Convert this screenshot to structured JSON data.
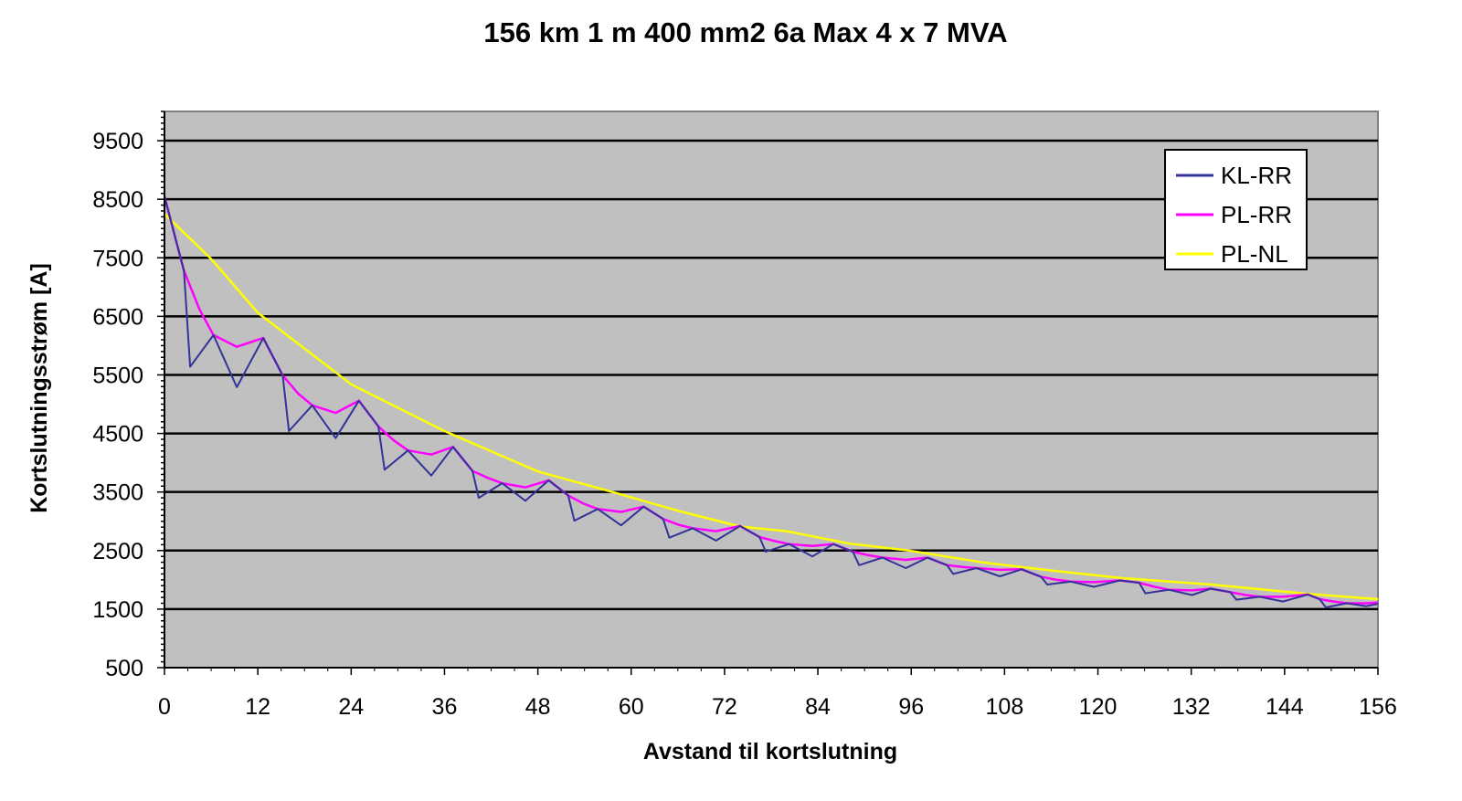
{
  "chart_data": {
    "type": "line",
    "title": "156 km 1 m 400 mm2 6a Max 4 x 7 MVA",
    "xlabel": "Avstand til kortslutning",
    "ylabel": "Kortslutningsstrøm [A]",
    "xlim": [
      0,
      156
    ],
    "ylim": [
      500,
      10000
    ],
    "xticks": [
      "0",
      "12",
      "24",
      "36",
      "48",
      "60",
      "72",
      "84",
      "96",
      "108",
      "120",
      "132",
      "144",
      "156"
    ],
    "yticks": [
      "500",
      "1500",
      "2500",
      "3500",
      "4500",
      "5500",
      "6500",
      "7500",
      "8500",
      "9500"
    ],
    "grid": "horizontal major",
    "background": "#c0c0c0",
    "legend_position": "top-right",
    "series": [
      {
        "name": "KL-RR",
        "color": "#333399",
        "x": [
          0,
          2.5,
          3.3,
          6.3,
          9.3,
          12.7,
          15.2,
          16,
          19,
          22,
          25,
          27.5,
          28.3,
          31.3,
          34.3,
          37.1,
          39.6,
          40.4,
          43.4,
          46.4,
          49.4,
          51.9,
          52.7,
          55.7,
          58.7,
          61.6,
          64.1,
          64.9,
          67.9,
          70.9,
          74,
          76.5,
          77.3,
          80.3,
          83.3,
          86,
          88.5,
          89.3,
          92.3,
          95.3,
          98.1,
          100.6,
          101.4,
          104.4,
          107.4,
          110.2,
          112.7,
          113.5,
          116.5,
          119.5,
          122.8,
          125.3,
          126.1,
          129.1,
          132.1,
          134.5,
          137,
          137.8,
          140.8,
          143.8,
          147,
          148.5,
          149.3,
          152,
          154.5,
          156
        ],
        "y": [
          8550,
          7280,
          5640,
          6180,
          5290,
          6130,
          5490,
          4540,
          4980,
          4420,
          5060,
          4620,
          3880,
          4210,
          3780,
          4270,
          3860,
          3400,
          3650,
          3350,
          3700,
          3440,
          3010,
          3210,
          2930,
          3250,
          3040,
          2720,
          2880,
          2670,
          2920,
          2730,
          2480,
          2610,
          2400,
          2610,
          2480,
          2250,
          2380,
          2200,
          2380,
          2250,
          2100,
          2200,
          2060,
          2180,
          2050,
          1920,
          1970,
          1880,
          1990,
          1950,
          1770,
          1830,
          1740,
          1850,
          1790,
          1660,
          1710,
          1630,
          1750,
          1670,
          1530,
          1600,
          1550,
          1590
        ]
      },
      {
        "name": "PL-RR",
        "color": "#ff00ff",
        "x": [
          0,
          2.5,
          4.5,
          6.3,
          9.3,
          12.7,
          15.2,
          17.2,
          19,
          22,
          25,
          27.5,
          29.5,
          31.3,
          34.3,
          37.1,
          39.6,
          41.6,
          43.4,
          46.4,
          49.4,
          51.9,
          53.9,
          55.7,
          58.7,
          61.6,
          64.1,
          66.1,
          67.9,
          70.9,
          74,
          76.5,
          78.5,
          80.3,
          83.3,
          86,
          88.5,
          90.5,
          92.3,
          95.3,
          98.1,
          100.6,
          102.6,
          104.4,
          107.4,
          110.2,
          112.7,
          114.7,
          116.5,
          119.5,
          122.8,
          125.3,
          127.3,
          129.1,
          132.1,
          134.5,
          137,
          139,
          140.8,
          143.8,
          147,
          148.5,
          150.3,
          152,
          154.5,
          156
        ],
        "y": [
          8550,
          7280,
          6620,
          6180,
          5980,
          6130,
          5490,
          5180,
          4980,
          4850,
          5060,
          4620,
          4380,
          4210,
          4140,
          4270,
          3860,
          3740,
          3650,
          3580,
          3700,
          3440,
          3300,
          3210,
          3160,
          3250,
          3040,
          2940,
          2880,
          2830,
          2920,
          2730,
          2660,
          2610,
          2580,
          2610,
          2480,
          2420,
          2380,
          2340,
          2380,
          2250,
          2220,
          2200,
          2170,
          2180,
          2050,
          2000,
          1970,
          1960,
          1990,
          1950,
          1880,
          1830,
          1820,
          1850,
          1790,
          1740,
          1710,
          1710,
          1750,
          1670,
          1630,
          1600,
          1600,
          1610
        ]
      },
      {
        "name": "PL-NL",
        "color": "#ffff00",
        "x": [
          0,
          6,
          12,
          24,
          36,
          48,
          57.6,
          66,
          74,
          80,
          88,
          95.7,
          105.6,
          114,
          123,
          134.5,
          147,
          156
        ],
        "y": [
          8250,
          7480,
          6560,
          5340,
          4540,
          3850,
          3500,
          3180,
          2910,
          2830,
          2620,
          2500,
          2290,
          2160,
          2030,
          1920,
          1760,
          1670
        ]
      }
    ]
  }
}
